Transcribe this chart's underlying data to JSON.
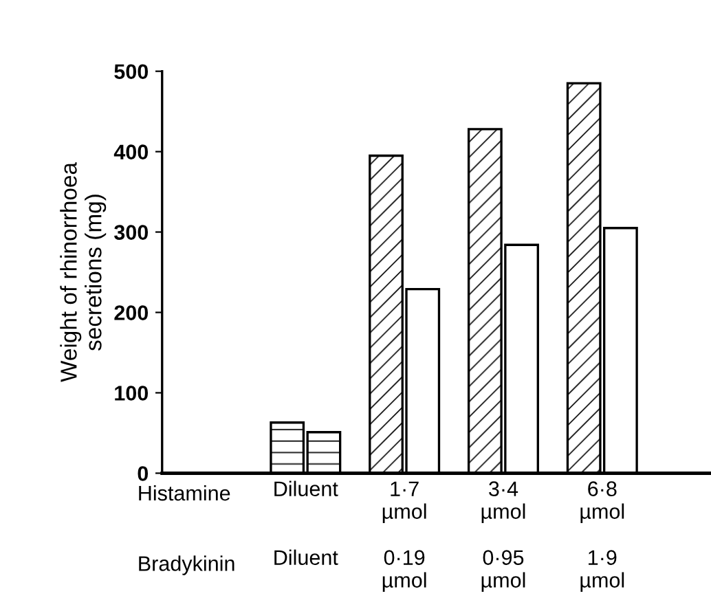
{
  "chart_data": {
    "type": "bar",
    "ylabel": "Weight of rhinorrhoea\nsecretions (mg)",
    "categories": [
      "Diluent",
      "1·7\nµmol",
      "3·4\nµmol",
      "6·8\nµmol"
    ],
    "series": [
      {
        "color": "#ffffff",
        "values": [
          63,
          395,
          428,
          485
        ]
      },
      {
        "color": "#ffffff",
        "values": [
          51,
          229,
          284,
          305
        ]
      }
    ],
    "ylim": [
      0,
      500
    ],
    "yticks": [
      0,
      100,
      200,
      300,
      400,
      500
    ],
    "grid": false,
    "annotations": [
      "Histamine",
      "Bradykinin",
      "Diluent",
      "0·19\nµmol",
      "0·95\nµmol",
      "1·9\nµmol"
    ]
  }
}
